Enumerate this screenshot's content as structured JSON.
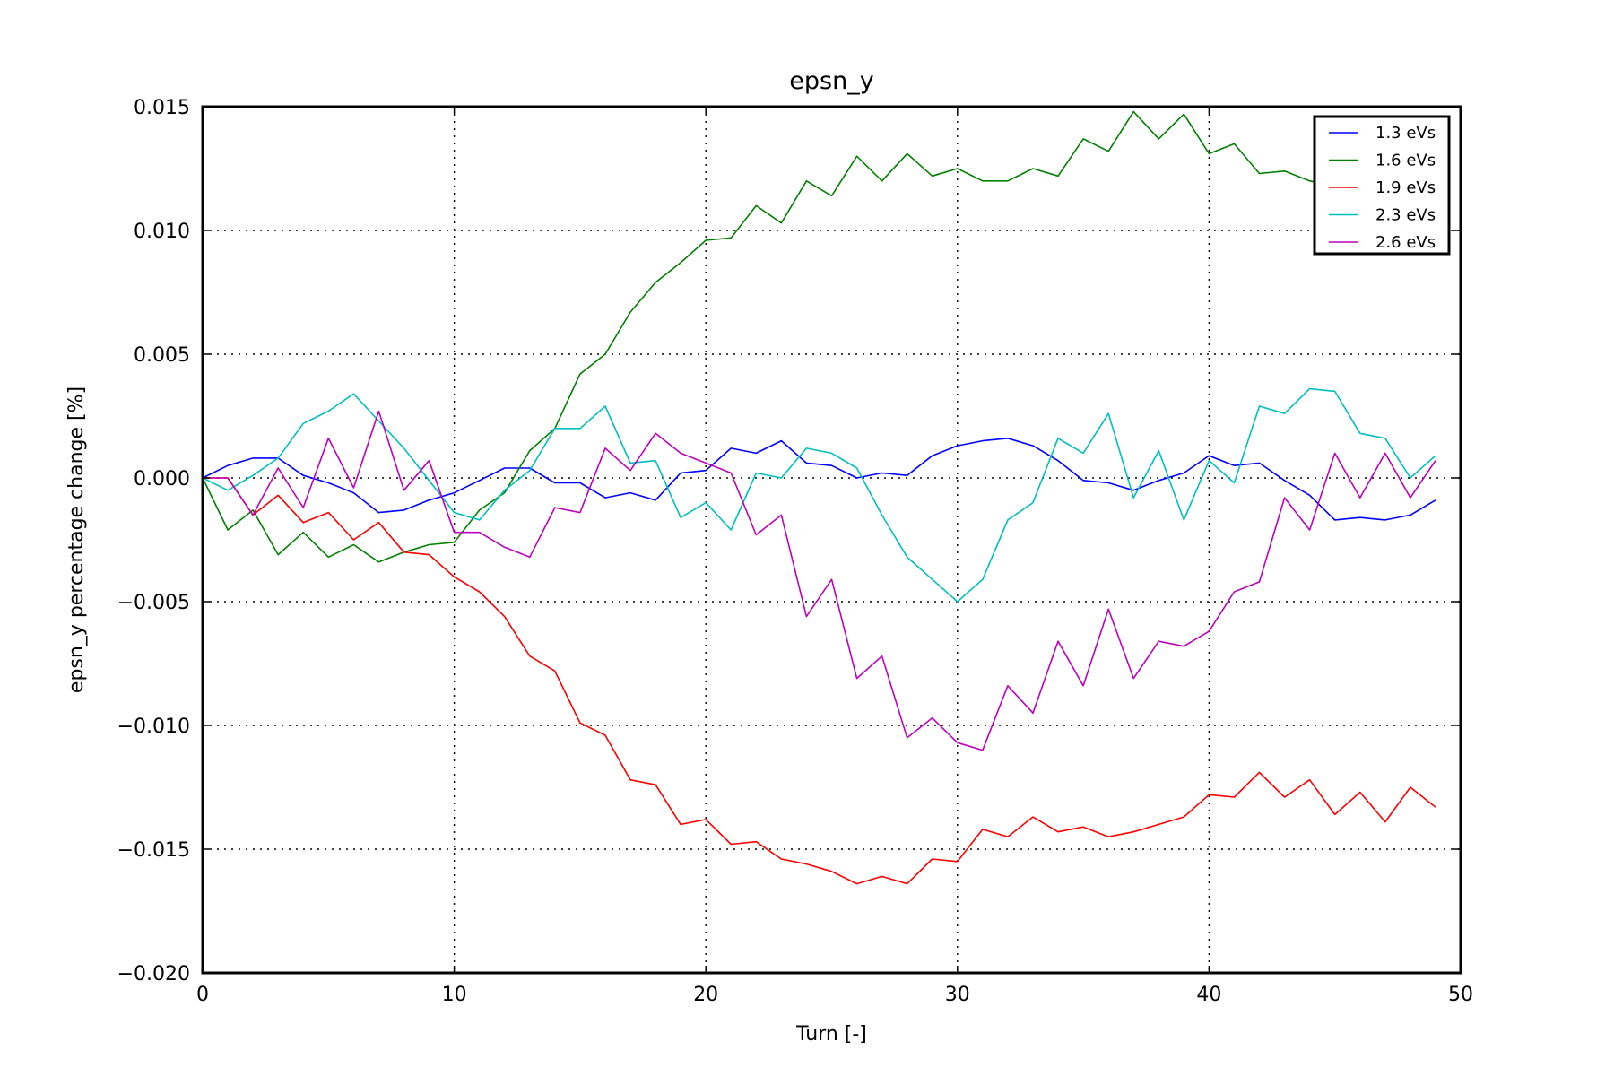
{
  "chart_data": {
    "type": "line",
    "title": "epsn_y",
    "xlabel": "Turn [-]",
    "ylabel": "epsn_y percentage change [%]",
    "xlim": [
      0,
      50
    ],
    "ylim": [
      -0.02,
      0.015
    ],
    "xticks": [
      0,
      10,
      20,
      30,
      40,
      50
    ],
    "xtick_labels": [
      "0",
      "10",
      "20",
      "30",
      "40",
      "50"
    ],
    "yticks": [
      0.015,
      0.01,
      0.005,
      0.0,
      -0.005,
      -0.01,
      -0.015,
      -0.02
    ],
    "ytick_labels": [
      "0.015",
      "0.010",
      "0.005",
      "0.000",
      "−0.005",
      "−0.010",
      "−0.015",
      "−0.020"
    ],
    "grid": true,
    "legend_position": "top-right",
    "x": [
      0,
      1,
      2,
      3,
      4,
      5,
      6,
      7,
      8,
      9,
      10,
      11,
      12,
      13,
      14,
      15,
      16,
      17,
      18,
      19,
      20,
      21,
      22,
      23,
      24,
      25,
      26,
      27,
      28,
      29,
      30,
      31,
      32,
      33,
      34,
      35,
      36,
      37,
      38,
      39,
      40,
      41,
      42,
      43,
      44,
      45,
      46,
      47,
      48,
      49
    ],
    "series": [
      {
        "name": "1.3 eVs",
        "color": "#0000ff",
        "values": [
          0.0,
          0.0005,
          0.0008,
          0.0008,
          0.0001,
          -0.0002,
          -0.0006,
          -0.0014,
          -0.0013,
          -0.0009,
          -0.0006,
          -0.0001,
          0.0004,
          0.0004,
          -0.0002,
          -0.0002,
          -0.0008,
          -0.0006,
          -0.0009,
          0.0002,
          0.0003,
          0.0012,
          0.001,
          0.0015,
          0.0006,
          0.0005,
          0.0,
          0.0002,
          0.0001,
          0.0009,
          0.0013,
          0.0015,
          0.0016,
          0.0013,
          0.0007,
          -0.0001,
          -0.0002,
          -0.0005,
          -0.0001,
          0.0002,
          0.0009,
          0.0005,
          0.0006,
          -0.0001,
          -0.0007,
          -0.0017,
          -0.0016,
          -0.0017,
          -0.0015,
          -0.0009
        ]
      },
      {
        "name": "1.6 eVs",
        "color": "#008000",
        "values": [
          0.0,
          -0.0021,
          -0.0013,
          -0.0031,
          -0.0022,
          -0.0032,
          -0.0027,
          -0.0034,
          -0.003,
          -0.0027,
          -0.0026,
          -0.0013,
          -0.0006,
          0.0011,
          0.002,
          0.0042,
          0.005,
          0.0067,
          0.0079,
          0.0087,
          0.0096,
          0.0097,
          0.011,
          0.0103,
          0.012,
          0.0114,
          0.013,
          0.012,
          0.0131,
          0.0122,
          0.0125,
          0.012,
          0.012,
          0.0125,
          0.0122,
          0.0137,
          0.0132,
          0.0148,
          0.0137,
          0.0147,
          0.0131,
          0.0135,
          0.0123,
          0.0124,
          0.012,
          0.0118,
          0.0117,
          0.0115,
          0.0113,
          0.0112
        ]
      },
      {
        "name": "1.9 eVs",
        "color": "#ff0000",
        "values": [
          0.0,
          0.0,
          -0.0015,
          -0.0007,
          -0.0018,
          -0.0014,
          -0.0025,
          -0.0018,
          -0.003,
          -0.0031,
          -0.004,
          -0.0046,
          -0.0056,
          -0.0072,
          -0.0078,
          -0.0099,
          -0.0104,
          -0.0122,
          -0.0124,
          -0.014,
          -0.0138,
          -0.0148,
          -0.0147,
          -0.0154,
          -0.0156,
          -0.0159,
          -0.0164,
          -0.0161,
          -0.0164,
          -0.0154,
          -0.0155,
          -0.0142,
          -0.0145,
          -0.0137,
          -0.0143,
          -0.0141,
          -0.0145,
          -0.0143,
          -0.014,
          -0.0137,
          -0.0128,
          -0.0129,
          -0.0119,
          -0.0129,
          -0.0122,
          -0.0136,
          -0.0127,
          -0.0139,
          -0.0125,
          -0.0133
        ]
      },
      {
        "name": "2.3 eVs",
        "color": "#00bfbf",
        "values": [
          0.0,
          -0.0005,
          0.0001,
          0.0008,
          0.0022,
          0.0027,
          0.0034,
          0.0023,
          0.0012,
          -0.0001,
          -0.0014,
          -0.0017,
          -0.0005,
          0.0003,
          0.002,
          0.002,
          0.0029,
          0.0006,
          0.0007,
          -0.0016,
          -0.001,
          -0.0021,
          0.0002,
          0.0,
          0.0012,
          0.001,
          0.0004,
          -0.0015,
          -0.0032,
          -0.0041,
          -0.005,
          -0.0041,
          -0.0017,
          -0.001,
          0.0016,
          0.001,
          0.0026,
          -0.0008,
          0.0011,
          -0.0017,
          0.0007,
          -0.0002,
          0.0029,
          0.0026,
          0.0036,
          0.0035,
          0.0018,
          0.0016,
          0.0,
          0.0009
        ]
      },
      {
        "name": "2.6 eVs",
        "color": "#bf00bf",
        "values": [
          0.0,
          0.0,
          -0.0015,
          0.0004,
          -0.0012,
          0.0016,
          -0.0004,
          0.0027,
          -0.0005,
          0.0007,
          -0.0022,
          -0.0022,
          -0.0028,
          -0.0032,
          -0.0012,
          -0.0014,
          0.0012,
          0.0003,
          0.0018,
          0.001,
          0.0006,
          0.0002,
          -0.0023,
          -0.0015,
          -0.0056,
          -0.0041,
          -0.0081,
          -0.0072,
          -0.0105,
          -0.0097,
          -0.0107,
          -0.011,
          -0.0084,
          -0.0095,
          -0.0066,
          -0.0084,
          -0.0053,
          -0.0081,
          -0.0066,
          -0.0068,
          -0.0062,
          -0.0046,
          -0.0042,
          -0.0008,
          -0.0021,
          0.001,
          -0.0008,
          0.001,
          -0.0008,
          0.0007
        ]
      }
    ]
  }
}
